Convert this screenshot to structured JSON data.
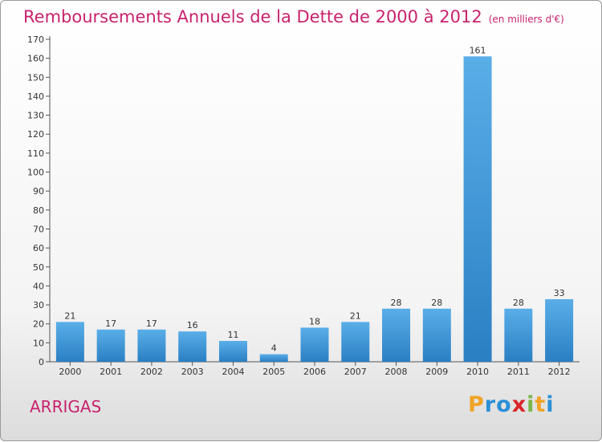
{
  "header": {
    "title": "Remboursements Annuels de la Dette de 2000 à 2012",
    "subtitle": "(en milliers d'€)"
  },
  "footer": {
    "commune": "ARRIGAS",
    "brand_letters": [
      "P",
      "r",
      "o",
      "x",
      "i",
      "t",
      "i"
    ]
  },
  "colors": {
    "title": "#c8226d",
    "bar_top": "#5aaee8",
    "bar_bottom": "#2a7fc3",
    "axis": "#555555"
  },
  "chart_data": {
    "type": "bar",
    "title": "Remboursements Annuels de la Dette de 2000 à 2012",
    "subtitle": "(en milliers d'€)",
    "xlabel": "",
    "ylabel": "",
    "categories": [
      "2000",
      "2001",
      "2002",
      "2003",
      "2004",
      "2005",
      "2006",
      "2007",
      "2008",
      "2009",
      "2010",
      "2011",
      "2012"
    ],
    "values": [
      21,
      17,
      17,
      16,
      11,
      4,
      18,
      21,
      28,
      28,
      161,
      28,
      33
    ],
    "ylim": [
      0,
      170
    ],
    "yticks": [
      0,
      10,
      20,
      30,
      40,
      50,
      60,
      70,
      80,
      90,
      100,
      110,
      120,
      130,
      140,
      150,
      160,
      170
    ],
    "grid": false,
    "legend": "none"
  }
}
